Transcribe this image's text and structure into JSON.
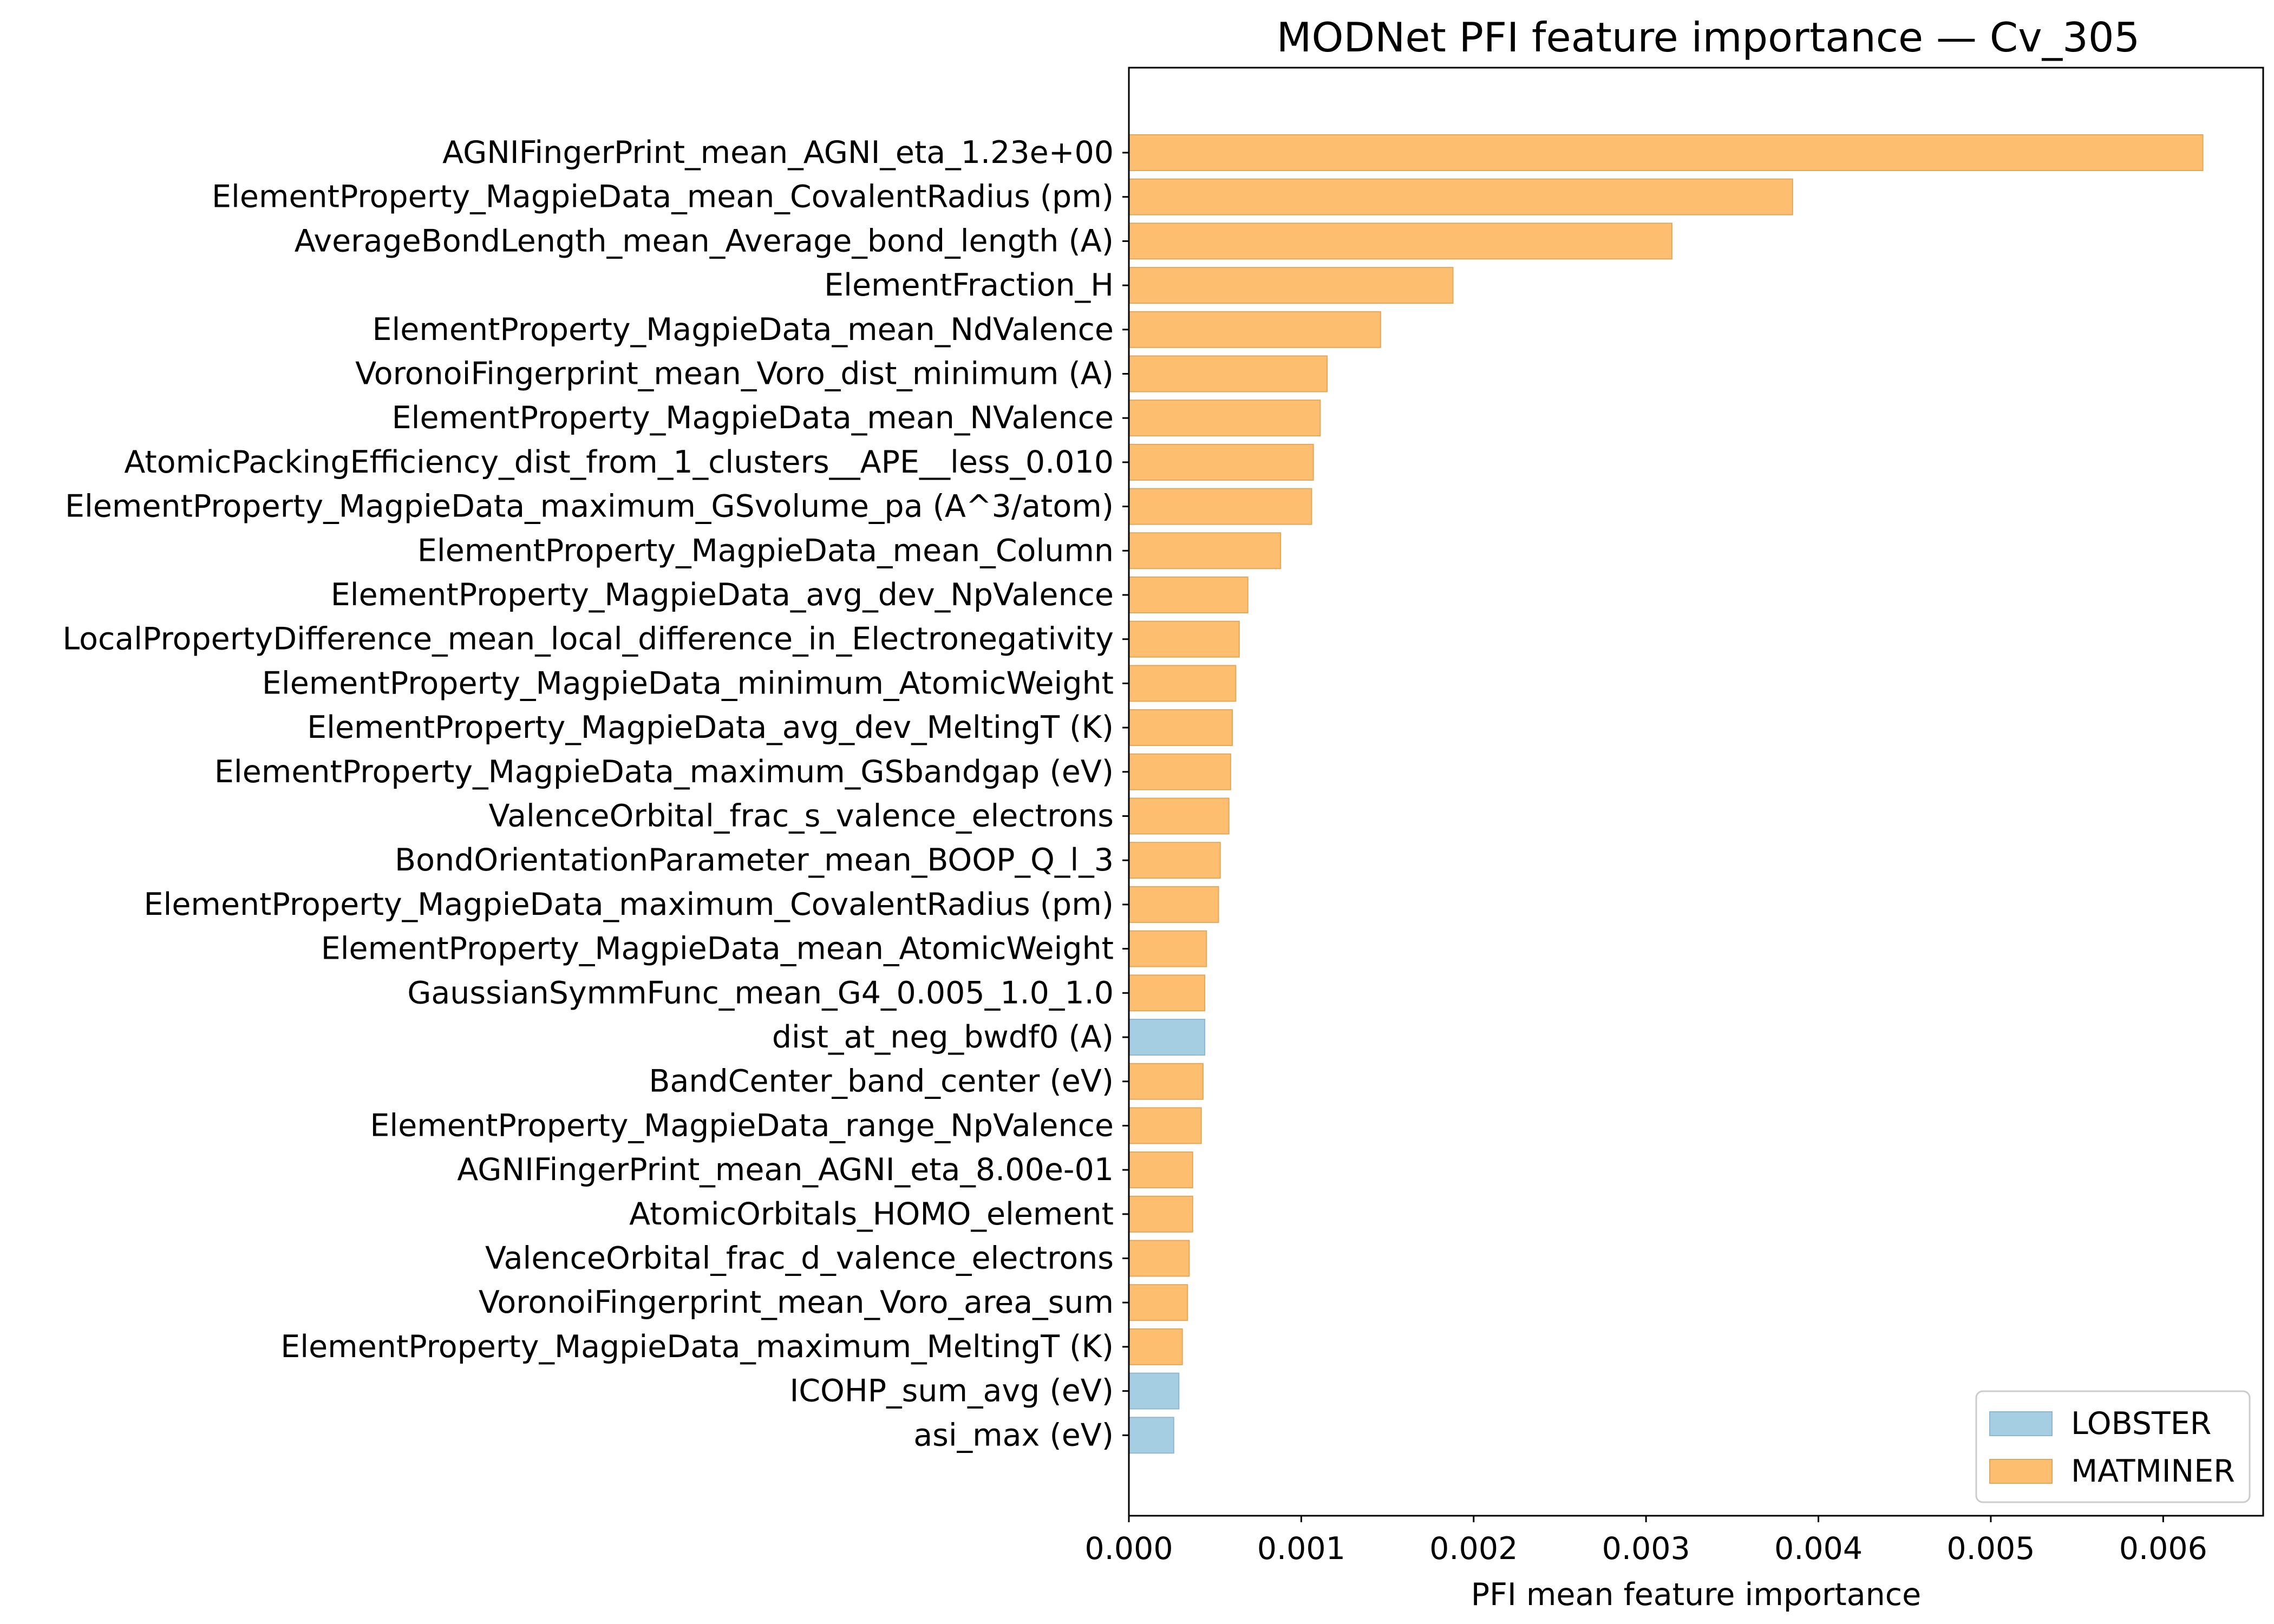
{
  "chart_data": {
    "type": "bar",
    "orientation": "horizontal",
    "title": "MODNet PFI feature importance — Cv_305",
    "xlabel": "PFI mean feature importance",
    "ylabel": "",
    "xlim": [
      0,
      0.00658
    ],
    "x_ticks": [
      "0.000",
      "0.001",
      "0.002",
      "0.003",
      "0.004",
      "0.005",
      "0.006"
    ],
    "x_tick_values": [
      0,
      0.001,
      0.002,
      0.003,
      0.004,
      0.005,
      0.006
    ],
    "grid": false,
    "legend_position": "lower-right",
    "legend": [
      {
        "name": "LOBSTER",
        "color": "#a6cee3"
      },
      {
        "name": "MATMINER",
        "color": "#fdbf6f"
      }
    ],
    "bar_edge_colors": {
      "LOBSTER": "#8fb8d0",
      "MATMINER": "#e0a85f"
    },
    "bars": [
      {
        "label": "AGNIFingerPrint_mean_AGNI_eta_1.23e+00",
        "value": 0.00623,
        "group": "MATMINER"
      },
      {
        "label": "ElementProperty_MagpieData_mean_CovalentRadius (pm)",
        "value": 0.00385,
        "group": "MATMINER"
      },
      {
        "label": "AverageBondLength_mean_Average_bond_length (A)",
        "value": 0.00315,
        "group": "MATMINER"
      },
      {
        "label": "ElementFraction_H",
        "value": 0.00188,
        "group": "MATMINER"
      },
      {
        "label": "ElementProperty_MagpieData_mean_NdValence",
        "value": 0.00146,
        "group": "MATMINER"
      },
      {
        "label": "VoronoiFingerprint_mean_Voro_dist_minimum (A)",
        "value": 0.00115,
        "group": "MATMINER"
      },
      {
        "label": "ElementProperty_MagpieData_mean_NValence",
        "value": 0.00111,
        "group": "MATMINER"
      },
      {
        "label": "AtomicPackingEfficiency_dist_from_1_clusters__APE__less_0.010",
        "value": 0.00107,
        "group": "MATMINER"
      },
      {
        "label": "ElementProperty_MagpieData_maximum_GSvolume_pa (A^3/atom)",
        "value": 0.00106,
        "group": "MATMINER"
      },
      {
        "label": "ElementProperty_MagpieData_mean_Column",
        "value": 0.00088,
        "group": "MATMINER"
      },
      {
        "label": "ElementProperty_MagpieData_avg_dev_NpValence",
        "value": 0.00069,
        "group": "MATMINER"
      },
      {
        "label": "LocalPropertyDifference_mean_local_difference_in_Electronegativity",
        "value": 0.00064,
        "group": "MATMINER"
      },
      {
        "label": "ElementProperty_MagpieData_minimum_AtomicWeight",
        "value": 0.00062,
        "group": "MATMINER"
      },
      {
        "label": "ElementProperty_MagpieData_avg_dev_MeltingT (K)",
        "value": 0.0006,
        "group": "MATMINER"
      },
      {
        "label": "ElementProperty_MagpieData_maximum_GSbandgap (eV)",
        "value": 0.00059,
        "group": "MATMINER"
      },
      {
        "label": "ValenceOrbital_frac_s_valence_electrons",
        "value": 0.00058,
        "group": "MATMINER"
      },
      {
        "label": "BondOrientationParameter_mean_BOOP_Q_l_3",
        "value": 0.00053,
        "group": "MATMINER"
      },
      {
        "label": "ElementProperty_MagpieData_maximum_CovalentRadius (pm)",
        "value": 0.00052,
        "group": "MATMINER"
      },
      {
        "label": "ElementProperty_MagpieData_mean_AtomicWeight",
        "value": 0.00045,
        "group": "MATMINER"
      },
      {
        "label": "GaussianSymmFunc_mean_G4_0.005_1.0_1.0",
        "value": 0.00044,
        "group": "MATMINER"
      },
      {
        "label": "dist_at_neg_bwdf0 (A)",
        "value": 0.00044,
        "group": "LOBSTER"
      },
      {
        "label": "BandCenter_band_center (eV)",
        "value": 0.00043,
        "group": "MATMINER"
      },
      {
        "label": "ElementProperty_MagpieData_range_NpValence",
        "value": 0.00042,
        "group": "MATMINER"
      },
      {
        "label": "AGNIFingerPrint_mean_AGNI_eta_8.00e-01",
        "value": 0.00037,
        "group": "MATMINER"
      },
      {
        "label": "AtomicOrbitals_HOMO_element",
        "value": 0.00037,
        "group": "MATMINER"
      },
      {
        "label": "ValenceOrbital_frac_d_valence_electrons",
        "value": 0.00035,
        "group": "MATMINER"
      },
      {
        "label": "VoronoiFingerprint_mean_Voro_area_sum",
        "value": 0.00034,
        "group": "MATMINER"
      },
      {
        "label": "ElementProperty_MagpieData_maximum_MeltingT (K)",
        "value": 0.00031,
        "group": "MATMINER"
      },
      {
        "label": "ICOHP_sum_avg (eV)",
        "value": 0.00029,
        "group": "LOBSTER"
      },
      {
        "label": "asi_max (eV)",
        "value": 0.00026,
        "group": "LOBSTER"
      }
    ]
  }
}
